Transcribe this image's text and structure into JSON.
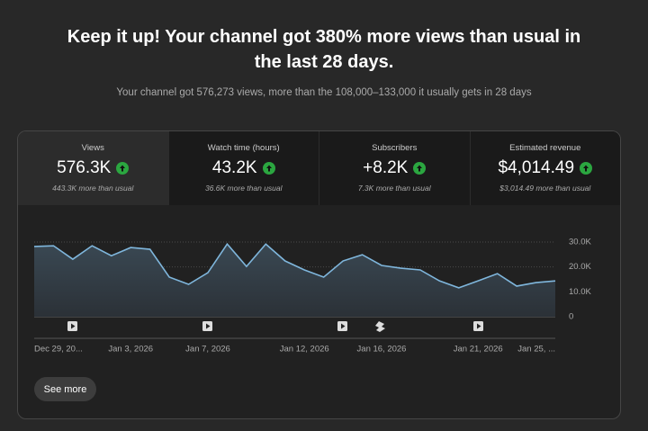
{
  "header": {
    "title_line1": "Keep it up! Your channel got 380% more views than usual in",
    "title_line2": "the last 28 days.",
    "subtitle": "Your channel got 576,273 views, more than the 108,000–133,000 it usually gets in 28 days"
  },
  "metrics": [
    {
      "label": "Views",
      "value": "576.3K",
      "note": "443.3K more than usual"
    },
    {
      "label": "Watch time (hours)",
      "value": "43.2K",
      "note": "36.6K more than usual"
    },
    {
      "label": "Subscribers",
      "value": "+8.2K",
      "note": "7.3K more than usual"
    },
    {
      "label": "Estimated revenue",
      "value": "$4,014.49",
      "note": "$3,014.49 more than usual"
    }
  ],
  "chart_data": {
    "type": "line",
    "color": "#7fb6dc",
    "area": true,
    "grid": true,
    "categories": [
      "Dec 29, 20...",
      null,
      null,
      null,
      null,
      "Jan 3, 2026",
      null,
      null,
      null,
      "Jan 7, 2026",
      null,
      null,
      null,
      null,
      "Jan 12, 2026",
      null,
      null,
      null,
      "Jan 16, 2026",
      null,
      null,
      null,
      null,
      "Jan 21, 2026",
      null,
      null,
      null,
      "Jan 25, ..."
    ],
    "values": [
      28200,
      28500,
      23100,
      28500,
      24500,
      27800,
      27100,
      15900,
      13000,
      17700,
      29200,
      20200,
      29200,
      22400,
      18800,
      15900,
      22400,
      24900,
      20600,
      19500,
      18800,
      14400,
      11600,
      14400,
      17300,
      12300,
      13700,
      14400
    ],
    "ylim": [
      0,
      30000
    ],
    "yticks": [
      0,
      {
        "value": 10000,
        "label": "10.0K"
      },
      {
        "value": 20000,
        "label": "20.0K"
      },
      {
        "value": 30000,
        "label": "30.0K"
      }
    ]
  },
  "button": {
    "label": "See more"
  }
}
